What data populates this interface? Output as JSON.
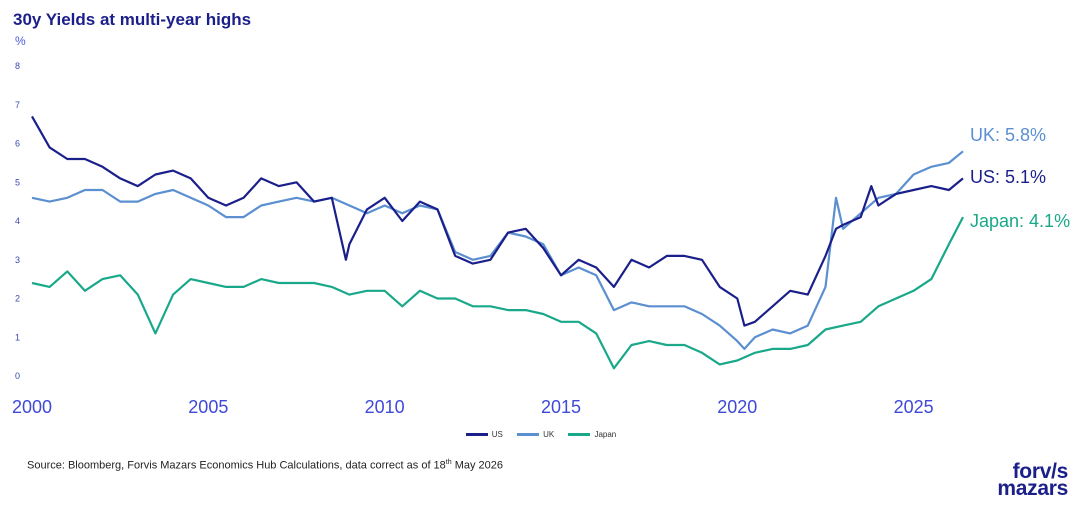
{
  "title": "30y Yields at multi-year highs",
  "unit": "%",
  "source": {
    "prefix": "Source: Bloomberg, Forvis Mazars Economics Hub Calculations, data correct as of 18",
    "sup": "th",
    "suffix": " May 2026"
  },
  "logo": {
    "line1": "forv/s",
    "line2": "mazars"
  },
  "legend": [
    "US",
    "UK",
    "Japan"
  ],
  "end_labels": [
    "UK: 5.8%",
    "US: 5.1%",
    "Japan: 4.1%"
  ],
  "colors": {
    "US": "#1b1f8a",
    "UK": "#5b8fd0",
    "Japan": "#1aa88a",
    "axis_text": "#3f49d8"
  },
  "chart_data": {
    "type": "line",
    "title": "30y Yields at multi-year highs",
    "ylabel": "%",
    "xlim": [
      2000,
      2026.4
    ],
    "ylim": [
      0,
      8
    ],
    "xticks": [
      2000,
      2005,
      2010,
      2015,
      2020,
      2025
    ],
    "xtick_labels": [
      "2000",
      "2005",
      "2010",
      "2015",
      "2020",
      "2025"
    ],
    "yticks": [
      0,
      1,
      2,
      3,
      4,
      5,
      6,
      7,
      8
    ],
    "grid": false,
    "legend_position": "bottom",
    "series": [
      {
        "name": "US",
        "color": "#1b1f8a",
        "end_label": "US: 5.1%",
        "x": [
          2000.0,
          2000.5,
          2001.0,
          2001.5,
          2002.0,
          2002.5,
          2003.0,
          2003.5,
          2004.0,
          2004.5,
          2005.0,
          2005.5,
          2006.0,
          2006.5,
          2007.0,
          2007.5,
          2008.0,
          2008.5,
          2008.9,
          2009.0,
          2009.5,
          2010.0,
          2010.5,
          2011.0,
          2011.5,
          2012.0,
          2012.5,
          2013.0,
          2013.5,
          2014.0,
          2014.5,
          2015.0,
          2015.5,
          2016.0,
          2016.5,
          2017.0,
          2017.5,
          2018.0,
          2018.5,
          2019.0,
          2019.5,
          2020.0,
          2020.2,
          2020.5,
          2021.0,
          2021.5,
          2022.0,
          2022.5,
          2022.8,
          2023.0,
          2023.5,
          2023.8,
          2024.0,
          2024.5,
          2025.0,
          2025.5,
          2026.0,
          2026.4
        ],
        "y": [
          6.7,
          5.9,
          5.6,
          5.6,
          5.4,
          5.1,
          4.9,
          5.2,
          5.3,
          5.1,
          4.6,
          4.4,
          4.6,
          5.1,
          4.9,
          5.0,
          4.5,
          4.6,
          3.0,
          3.4,
          4.3,
          4.6,
          4.0,
          4.5,
          4.3,
          3.1,
          2.9,
          3.0,
          3.7,
          3.8,
          3.3,
          2.6,
          3.0,
          2.8,
          2.3,
          3.0,
          2.8,
          3.1,
          3.1,
          3.0,
          2.3,
          2.0,
          1.3,
          1.4,
          1.8,
          2.2,
          2.1,
          3.1,
          3.8,
          3.9,
          4.1,
          4.9,
          4.4,
          4.7,
          4.8,
          4.9,
          4.8,
          5.1
        ]
      },
      {
        "name": "UK",
        "color": "#5b8fd0",
        "end_label": "UK: 5.8%",
        "x": [
          2000.0,
          2000.5,
          2001.0,
          2001.5,
          2002.0,
          2002.5,
          2003.0,
          2003.5,
          2004.0,
          2004.5,
          2005.0,
          2005.5,
          2006.0,
          2006.5,
          2007.0,
          2007.5,
          2008.0,
          2008.5,
          2009.0,
          2009.5,
          2010.0,
          2010.5,
          2011.0,
          2011.5,
          2012.0,
          2012.5,
          2013.0,
          2013.5,
          2014.0,
          2014.5,
          2015.0,
          2015.5,
          2016.0,
          2016.5,
          2017.0,
          2017.5,
          2018.0,
          2018.5,
          2019.0,
          2019.5,
          2020.0,
          2020.2,
          2020.5,
          2021.0,
          2021.5,
          2022.0,
          2022.5,
          2022.8,
          2023.0,
          2023.5,
          2024.0,
          2024.5,
          2025.0,
          2025.5,
          2026.0,
          2026.4
        ],
        "y": [
          4.6,
          4.5,
          4.6,
          4.8,
          4.8,
          4.5,
          4.5,
          4.7,
          4.8,
          4.6,
          4.4,
          4.1,
          4.1,
          4.4,
          4.5,
          4.6,
          4.5,
          4.6,
          4.4,
          4.2,
          4.4,
          4.2,
          4.4,
          4.3,
          3.2,
          3.0,
          3.1,
          3.7,
          3.6,
          3.4,
          2.6,
          2.8,
          2.6,
          1.7,
          1.9,
          1.8,
          1.8,
          1.8,
          1.6,
          1.3,
          0.9,
          0.7,
          1.0,
          1.2,
          1.1,
          1.3,
          2.3,
          4.6,
          3.8,
          4.2,
          4.6,
          4.7,
          5.2,
          5.4,
          5.5,
          5.8
        ]
      },
      {
        "name": "Japan",
        "color": "#1aa88a",
        "end_label": "Japan: 4.1%",
        "x": [
          2000.0,
          2000.5,
          2001.0,
          2001.5,
          2002.0,
          2002.5,
          2003.0,
          2003.5,
          2004.0,
          2004.5,
          2005.0,
          2005.5,
          2006.0,
          2006.5,
          2007.0,
          2007.5,
          2008.0,
          2008.5,
          2009.0,
          2009.5,
          2010.0,
          2010.5,
          2011.0,
          2011.5,
          2012.0,
          2012.5,
          2013.0,
          2013.5,
          2014.0,
          2014.5,
          2015.0,
          2015.5,
          2016.0,
          2016.5,
          2017.0,
          2017.5,
          2018.0,
          2018.5,
          2019.0,
          2019.5,
          2020.0,
          2020.5,
          2021.0,
          2021.5,
          2022.0,
          2022.5,
          2023.0,
          2023.5,
          2024.0,
          2024.5,
          2025.0,
          2025.5,
          2026.0,
          2026.4
        ],
        "y": [
          2.4,
          2.3,
          2.7,
          2.2,
          2.5,
          2.6,
          2.1,
          1.1,
          2.1,
          2.5,
          2.4,
          2.3,
          2.3,
          2.5,
          2.4,
          2.4,
          2.4,
          2.3,
          2.1,
          2.2,
          2.2,
          1.8,
          2.2,
          2.0,
          2.0,
          1.8,
          1.8,
          1.7,
          1.7,
          1.6,
          1.4,
          1.4,
          1.1,
          0.2,
          0.8,
          0.9,
          0.8,
          0.8,
          0.6,
          0.3,
          0.4,
          0.6,
          0.7,
          0.7,
          0.8,
          1.2,
          1.3,
          1.4,
          1.8,
          2.0,
          2.2,
          2.5,
          3.4,
          4.1
        ]
      }
    ]
  }
}
